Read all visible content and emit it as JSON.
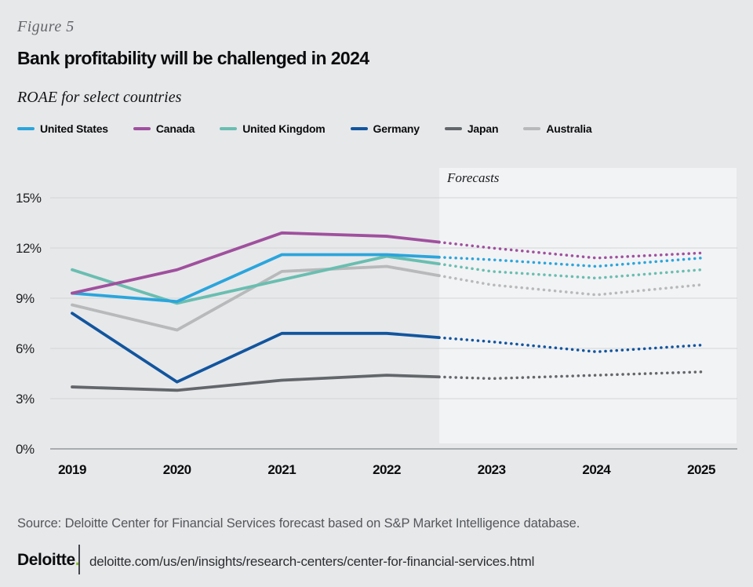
{
  "page": {
    "figure_label": "Figure 5",
    "title": "Bank profitability will be challenged in 2024",
    "subtitle": "ROAE for select countries",
    "source": "Source: Deloitte Center for Financial Services forecast based on S&P Market Intelligence database.",
    "brand": "Deloitte",
    "brand_dot": ".",
    "brand_dot_color": "#86BC25",
    "url": "deloitte.com/us/en/insights/research-centers/center-for-financial-services.html",
    "background_color": "#e7e8ea",
    "forecast_panel_color": "#f2f3f5"
  },
  "chart_data": {
    "type": "line",
    "title": "Bank profitability will be challenged in 2024",
    "subtitle": "ROAE for select countries",
    "x": [
      2019,
      2020,
      2021,
      2022,
      2023,
      2024,
      2025
    ],
    "xlabel": "",
    "ylabel": "",
    "ylim": [
      0,
      15
    ],
    "yticks": [
      "0%",
      "3%",
      "6%",
      "9%",
      "12%",
      "15%"
    ],
    "grid": true,
    "legend_position": "top",
    "forecast_label": "Forecasts",
    "forecast_start_x": 2022.5,
    "forecast_style": "dotted",
    "series": [
      {
        "name": "United States",
        "color": "#2AA5DC",
        "values": [
          9.3,
          8.8,
          11.6,
          11.6,
          11.3,
          10.9,
          11.4
        ]
      },
      {
        "name": "Canada",
        "color": "#A0509E",
        "values": [
          9.3,
          10.7,
          12.9,
          12.7,
          12.0,
          11.4,
          11.7
        ]
      },
      {
        "name": "United Kingdom",
        "color": "#69BEB0",
        "values": [
          10.7,
          8.7,
          10.1,
          11.5,
          10.6,
          10.2,
          10.7
        ]
      },
      {
        "name": "Germany",
        "color": "#12559E",
        "values": [
          8.1,
          4.0,
          6.9,
          6.9,
          6.4,
          5.8,
          6.2
        ]
      },
      {
        "name": "Japan",
        "color": "#63666A",
        "values": [
          3.7,
          3.5,
          4.1,
          4.4,
          4.2,
          4.4,
          4.6
        ]
      },
      {
        "name": "Australia",
        "color": "#B7B9BB",
        "values": [
          8.6,
          7.1,
          10.6,
          10.9,
          9.8,
          9.2,
          9.8
        ]
      }
    ]
  }
}
